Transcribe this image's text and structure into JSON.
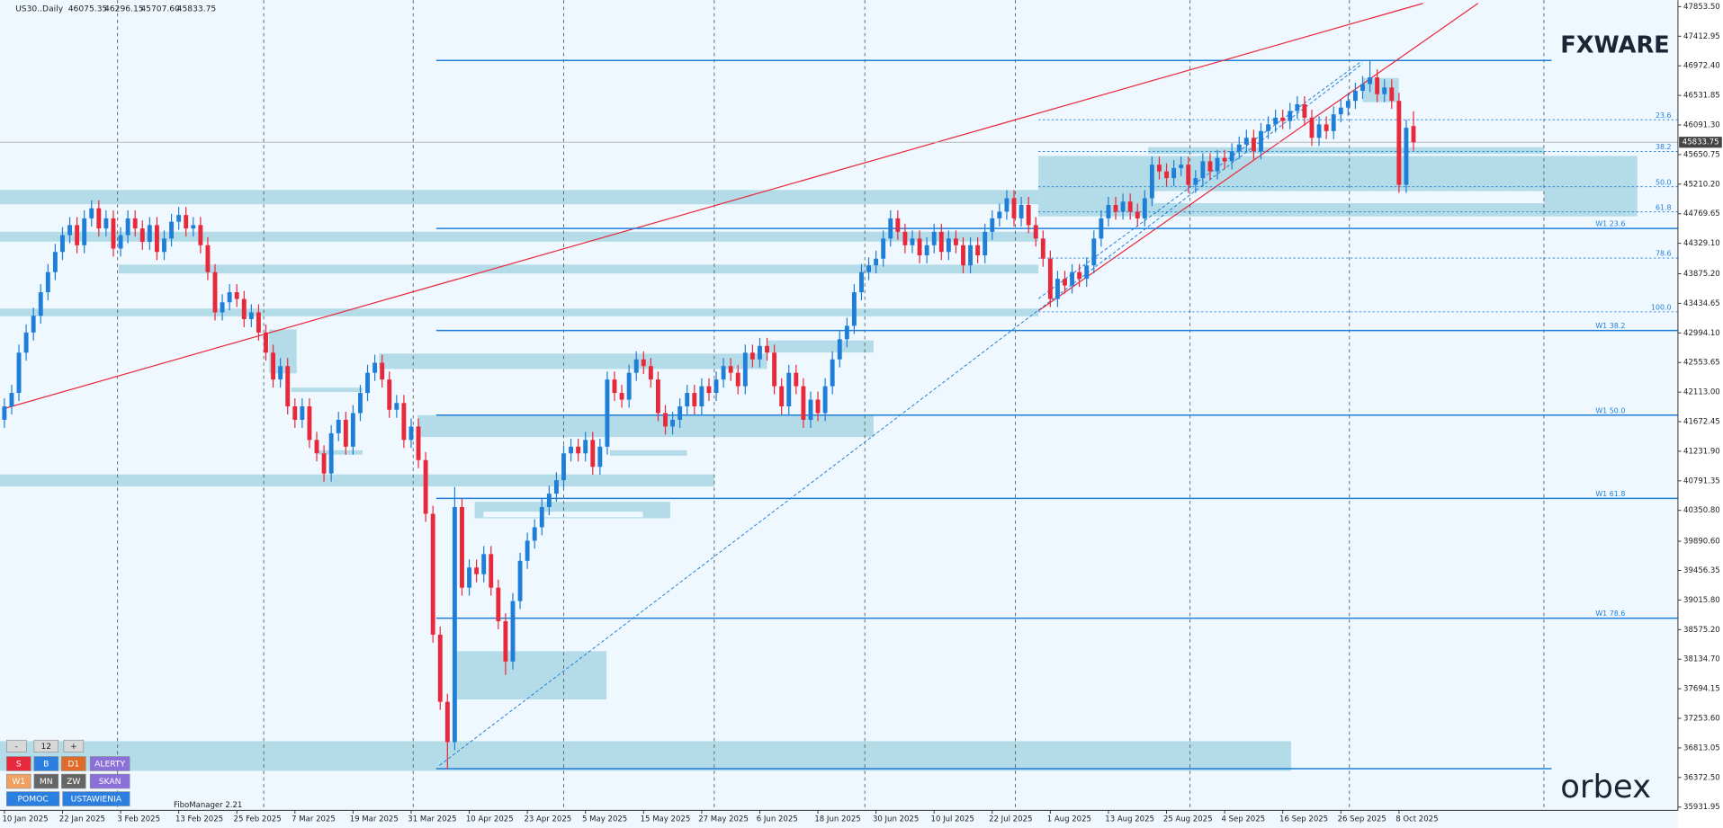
{
  "chart_data": {
    "type": "candlestick",
    "categories": [
      "10 Jan 2025",
      null,
      null,
      null,
      null,
      null,
      null,
      null,
      "22 Jan 2025",
      null,
      null,
      null,
      null,
      null,
      null,
      null,
      "3 Feb 2025",
      null,
      null,
      null,
      null,
      null,
      null,
      null,
      "13 Feb 2025",
      null,
      null,
      null,
      null,
      null,
      null,
      null,
      "25 Feb 2025",
      null,
      null,
      null,
      null,
      null,
      null,
      null,
      "7 Mar 2025",
      null,
      null,
      null,
      null,
      null,
      null,
      null,
      "19 Mar 2025",
      null,
      null,
      null,
      null,
      null,
      null,
      null,
      "31 Mar 2025",
      null,
      null,
      null,
      null,
      null,
      null,
      null,
      "10 Apr 2025",
      null,
      null,
      null,
      null,
      null,
      null,
      null,
      "23 Apr 2025",
      null,
      null,
      null,
      null,
      null,
      null,
      null,
      "5 May 2025",
      null,
      null,
      null,
      null,
      null,
      null,
      null,
      "15 May 2025",
      null,
      null,
      null,
      null,
      null,
      null,
      null,
      "27 May 2025",
      null,
      null,
      null,
      null,
      null,
      null,
      null,
      "6 Jun 2025",
      null,
      null,
      null,
      null,
      null,
      null,
      null,
      "18 Jun 2025",
      null,
      null,
      null,
      null,
      null,
      null,
      null,
      "30 Jun 2025",
      null,
      null,
      null,
      null,
      null,
      null,
      null,
      "10 Jul 2025",
      null,
      null,
      null,
      null,
      null,
      null,
      null,
      "22 Jul 2025",
      null,
      null,
      null,
      null,
      null,
      null,
      null,
      "1 Aug 2025",
      null,
      null,
      null,
      null,
      null,
      null,
      null,
      "13 Aug 2025",
      null,
      null,
      null,
      null,
      null,
      null,
      null,
      "25 Aug 2025",
      null,
      null,
      null,
      null,
      null,
      null,
      null,
      "4 Sep 2025",
      null,
      null,
      null,
      null,
      null,
      null,
      null,
      "16 Sep 2025",
      null,
      null,
      null,
      null,
      null,
      null,
      null,
      "26 Sep 2025",
      null,
      null,
      null,
      null,
      null,
      null,
      null,
      "8 Oct 2025",
      null,
      null
    ],
    "open": [
      41700,
      41900,
      42100,
      42700,
      43000,
      43250,
      43600,
      43900,
      44200,
      44450,
      44600,
      44300,
      44700,
      44850,
      44550,
      44700,
      44250,
      44450,
      44700,
      44550,
      44350,
      44600,
      44200,
      44400,
      44650,
      44750,
      44550,
      44600,
      44300,
      43900,
      43300,
      43450,
      43600,
      43500,
      43200,
      43300,
      43000,
      42700,
      42300,
      42500,
      41900,
      41700,
      41900,
      41400,
      41200,
      40900,
      41500,
      41700,
      41300,
      41800,
      42100,
      42400,
      42550,
      42300,
      41850,
      41950,
      41400,
      41600,
      41100,
      40300,
      38500,
      37500,
      36900,
      40400,
      39200,
      39500,
      39400,
      39700,
      39200,
      38700,
      38100,
      39000,
      39600,
      39900,
      40100,
      40400,
      40600,
      40800,
      41200,
      41300,
      41200,
      41400,
      41000,
      41300,
      42300,
      42100,
      42000,
      42400,
      42600,
      42500,
      42300,
      41800,
      41600,
      41700,
      41900,
      42100,
      41900,
      42200,
      42100,
      42300,
      42500,
      42400,
      42200,
      42700,
      42600,
      42800,
      42700,
      42200,
      41900,
      42400,
      42200,
      41700,
      42000,
      41800,
      42200,
      42600,
      42900,
      43100,
      43600,
      43900,
      44000,
      44100,
      44400,
      44700,
      44500,
      44300,
      44400,
      44150,
      44300,
      44500,
      44200,
      44400,
      44300,
      44000,
      44300,
      44150,
      44500,
      44700,
      44800,
      45000,
      44700,
      44900,
      44600,
      44400,
      44100,
      43500,
      43800,
      43700,
      43900,
      43800,
      44000,
      44400,
      44700,
      44900,
      44800,
      44950,
      44800,
      44700,
      45000,
      45500,
      45400,
      45300,
      45450,
      45500,
      45200,
      45300,
      45550,
      45400,
      45600,
      45550,
      45700,
      45800,
      45900,
      45700,
      46000,
      46100,
      46200,
      46150,
      46300,
      46400,
      46200,
      45900,
      46100,
      46000,
      46250,
      46350,
      46450,
      46600,
      46700,
      46800,
      46550,
      46650,
      46450,
      45200,
      46075.35
    ],
    "high": [
      42020,
      42220,
      42820,
      43120,
      43370,
      43720,
      44020,
      44320,
      44570,
      44720,
      44720,
      44820,
      44970,
      44970,
      44820,
      44820,
      44570,
      44820,
      44820,
      44670,
      44720,
      44720,
      44520,
      44770,
      44870,
      44870,
      44720,
      44720,
      44420,
      44020,
      43570,
      43720,
      43720,
      43620,
      43420,
      43420,
      43120,
      42820,
      42620,
      42620,
      42020,
      42020,
      42020,
      41520,
      41320,
      41620,
      41820,
      41820,
      41920,
      42220,
      42520,
      42670,
      42670,
      42420,
      42070,
      42070,
      41720,
      41720,
      41220,
      40420,
      38620,
      37620,
      40700,
      40520,
      39620,
      39620,
      39820,
      39820,
      39320,
      38820,
      39120,
      39720,
      40020,
      40220,
      40520,
      40720,
      40920,
      41320,
      41420,
      41420,
      41520,
      41520,
      41420,
      42420,
      42420,
      42220,
      42520,
      42720,
      42720,
      42620,
      42420,
      41920,
      41820,
      42020,
      42220,
      42220,
      42320,
      42320,
      42420,
      42620,
      42620,
      42520,
      42820,
      42820,
      42920,
      42920,
      42820,
      42320,
      42520,
      42520,
      42320,
      42120,
      42120,
      42320,
      42720,
      43020,
      43220,
      43720,
      44020,
      44120,
      44220,
      44520,
      44820,
      44820,
      44620,
      44520,
      44520,
      44420,
      44620,
      44620,
      44520,
      44520,
      44420,
      44420,
      44420,
      44620,
      44820,
      44920,
      45120,
      45120,
      45020,
      45020,
      44720,
      44520,
      44220,
      43920,
      43920,
      44020,
      44020,
      44120,
      44520,
      44820,
      45020,
      45020,
      45070,
      45070,
      44920,
      45120,
      45620,
      45620,
      45520,
      45570,
      45620,
      45620,
      45420,
      45670,
      45670,
      45720,
      45720,
      45820,
      45920,
      46020,
      46020,
      46120,
      46220,
      46320,
      46320,
      46420,
      46520,
      46520,
      46320,
      46220,
      46220,
      46370,
      46470,
      46570,
      46720,
      46820,
      47050,
      46920,
      46770,
      46770,
      46570,
      46170,
      46296.15
    ],
    "low": [
      41580,
      41780,
      41980,
      42580,
      42880,
      43130,
      43480,
      43780,
      44080,
      44330,
      44180,
      44180,
      44580,
      44430,
      44430,
      44130,
      44130,
      44330,
      44430,
      44230,
      44230,
      44080,
      44080,
      44280,
      44530,
      44430,
      44430,
      44180,
      43780,
      43180,
      43180,
      43330,
      43380,
      43080,
      43080,
      42880,
      42580,
      42180,
      42180,
      41780,
      41580,
      41580,
      41280,
      41080,
      40780,
      40780,
      41380,
      41180,
      41180,
      41680,
      41980,
      42280,
      42180,
      41730,
      41730,
      41280,
      41280,
      40980,
      40180,
      38380,
      37380,
      36500,
      36780,
      39080,
      39080,
      39280,
      39280,
      39080,
      38580,
      37900,
      37980,
      38880,
      39480,
      39780,
      39980,
      40280,
      40480,
      40680,
      41080,
      41080,
      41080,
      40880,
      40880,
      41180,
      41980,
      41880,
      41880,
      42280,
      42380,
      42180,
      41680,
      41480,
      41480,
      41580,
      41780,
      41780,
      41780,
      41980,
      41980,
      42180,
      42280,
      42080,
      42080,
      42480,
      42480,
      42580,
      42080,
      41780,
      41780,
      42080,
      41580,
      41580,
      41680,
      41680,
      42080,
      42480,
      42780,
      42980,
      43480,
      43780,
      43880,
      43980,
      44280,
      44380,
      44180,
      44180,
      44030,
      44030,
      44180,
      44080,
      44080,
      44180,
      43880,
      43880,
      44030,
      44030,
      44380,
      44580,
      44680,
      44580,
      44580,
      44480,
      44280,
      43980,
      43380,
      43380,
      43580,
      43580,
      43680,
      43680,
      43880,
      44280,
      44580,
      44680,
      44680,
      44680,
      44580,
      44580,
      44880,
      45280,
      45180,
      45180,
      45330,
      45080,
      45080,
      45180,
      45280,
      45280,
      45430,
      45430,
      45580,
      45680,
      45580,
      45580,
      45880,
      45980,
      46030,
      46030,
      46180,
      46080,
      45780,
      45780,
      45880,
      45880,
      46130,
      46230,
      46330,
      46480,
      46580,
      46430,
      46430,
      46330,
      45080,
      45080,
      45707.6
    ],
    "close": [
      41900,
      42100,
      42700,
      43000,
      43250,
      43600,
      43900,
      44200,
      44450,
      44600,
      44300,
      44700,
      44850,
      44550,
      44700,
      44250,
      44450,
      44700,
      44550,
      44350,
      44600,
      44200,
      44400,
      44650,
      44750,
      44550,
      44600,
      44300,
      43900,
      43300,
      43450,
      43600,
      43500,
      43200,
      43300,
      43000,
      42700,
      42300,
      42500,
      41900,
      41700,
      41900,
      41400,
      41200,
      40900,
      41500,
      41700,
      41300,
      41800,
      42100,
      42400,
      42550,
      42300,
      41850,
      41950,
      41400,
      41600,
      41100,
      40300,
      38500,
      37500,
      36900,
      40400,
      39200,
      39500,
      39400,
      39700,
      39200,
      38700,
      38100,
      39000,
      39600,
      39900,
      40100,
      40400,
      40600,
      40800,
      41200,
      41300,
      41200,
      41400,
      41000,
      41300,
      42300,
      42100,
      42000,
      42400,
      42600,
      42500,
      42300,
      41800,
      41600,
      41700,
      41900,
      42100,
      41900,
      42200,
      42100,
      42300,
      42500,
      42400,
      42200,
      42700,
      42600,
      42800,
      42700,
      42200,
      41900,
      42400,
      42200,
      41700,
      42000,
      41800,
      42200,
      42600,
      42900,
      43100,
      43600,
      43900,
      44000,
      44100,
      44400,
      44700,
      44500,
      44300,
      44400,
      44150,
      44300,
      44500,
      44200,
      44400,
      44300,
      44000,
      44300,
      44150,
      44500,
      44700,
      44800,
      45000,
      44700,
      44900,
      44600,
      44400,
      44100,
      43500,
      43800,
      43700,
      43900,
      43800,
      44000,
      44400,
      44700,
      44900,
      44800,
      44950,
      44800,
      44700,
      45000,
      45500,
      45400,
      45300,
      45450,
      45500,
      45200,
      45300,
      45550,
      45400,
      45600,
      45550,
      45700,
      45800,
      45900,
      45700,
      46000,
      46100,
      46200,
      46150,
      46300,
      46400,
      46200,
      45900,
      46100,
      46000,
      46250,
      46350,
      46450,
      46600,
      46700,
      46800,
      46550,
      46650,
      46450,
      45200,
      46050,
      45833.75
    ],
    "up_color": "#1f7fd8",
    "down_color": "#e8293b",
    "ylim": [
      35931.95,
      47853.5
    ],
    "yticks": [
      {
        "value": 47853.5,
        "label": "47853.50"
      },
      {
        "value": 47412.95,
        "label": "47412.95"
      },
      {
        "value": 46972.4,
        "label": "46972.40"
      },
      {
        "value": 46531.85,
        "label": "46531.85"
      },
      {
        "value": 46091.3,
        "label": "46091.30"
      },
      {
        "value": 45650.75,
        "label": "45650.75"
      },
      {
        "value": 45210.2,
        "label": "45210.20"
      },
      {
        "value": 44769.65,
        "label": "44769.65"
      },
      {
        "value": 44329.1,
        "label": "44329.10"
      },
      {
        "value": 43875.2,
        "label": "43875.20"
      },
      {
        "value": 43434.65,
        "label": "43434.65"
      },
      {
        "value": 42994.1,
        "label": "42994.10"
      },
      {
        "value": 42553.65,
        "label": "42553.65"
      },
      {
        "value": 42113,
        "label": "42113.00"
      },
      {
        "value": 41672.45,
        "label": "41672.45"
      },
      {
        "value": 41231.9,
        "label": "41231.90"
      },
      {
        "value": 40791.35,
        "label": "40791.35"
      },
      {
        "value": 40350.8,
        "label": "40350.80"
      },
      {
        "value": 39890.6,
        "label": "39890.60"
      },
      {
        "value": 39456.35,
        "label": "39456.35"
      },
      {
        "value": 39015.8,
        "label": "39015.80"
      },
      {
        "value": 38575.2,
        "label": "38575.20"
      },
      {
        "value": 38134.7,
        "label": "38134.70"
      },
      {
        "value": 37694.15,
        "label": "37694.15"
      },
      {
        "value": 37253.6,
        "label": "37253.60"
      },
      {
        "value": 36813.05,
        "label": "36813.05"
      },
      {
        "value": 36372.5,
        "label": "36372.50"
      },
      {
        "value": 35931.95,
        "label": "35931.95"
      }
    ],
    "fib_levels": [
      {
        "value": 46169,
        "label": "23.6"
      },
      {
        "value": 45695,
        "label": "38.2"
      },
      {
        "value": 45172,
        "label": "50.0"
      },
      {
        "value": 44796,
        "label": "61.8"
      },
      {
        "value": 44109,
        "label": "78.6"
      },
      {
        "value": 43308,
        "label": "100.0"
      }
    ],
    "w1_levels": [
      {
        "value": 44550,
        "label": "W1 23.6"
      },
      {
        "value": 43030,
        "label": "W1 38.2"
      },
      {
        "value": 41770,
        "label": "W1 50.0"
      },
      {
        "value": 40530,
        "label": "W1 61.8"
      },
      {
        "value": 38745,
        "label": "W1 78.6"
      }
    ]
  },
  "ui": {
    "header": {
      "symbol": "US30..Daily",
      "ohlc": [
        "46075.35",
        "46296.15",
        "45707.60",
        "45833.75"
      ]
    },
    "logo_top": "FXWARE",
    "logo_bottom": "orbex",
    "tool_name": "FiboManager 2.21",
    "buttons": [
      "-",
      "12",
      "+",
      "S",
      "B",
      "D1",
      "ALERTY",
      "W1",
      "MN",
      "ZW",
      "SKAN",
      "POMOC",
      "USTAWIENIA"
    ]
  }
}
